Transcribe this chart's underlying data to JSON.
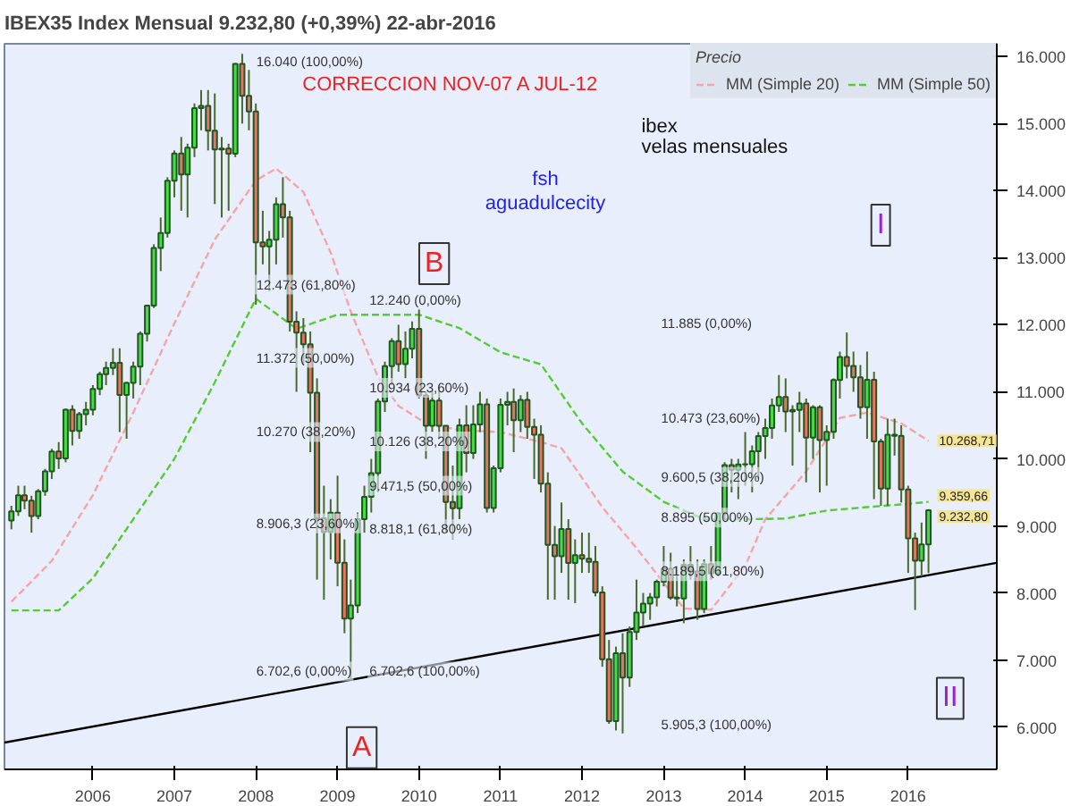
{
  "chart_data": {
    "type": "candlestick",
    "title": "IBEX35 Index   Mensual   9.232,80 (+0,39%)   22-abr-2016",
    "legend_title": "Precio",
    "legend": "top right",
    "x": [
      "2005-01",
      "2005-02",
      "2005-03",
      "2005-04",
      "2005-05",
      "2005-06",
      "2005-07",
      "2005-08",
      "2005-09",
      "2005-10",
      "2005-11",
      "2005-12",
      "2006-01",
      "2006-02",
      "2006-03",
      "2006-04",
      "2006-05",
      "2006-06",
      "2006-07",
      "2006-08",
      "2006-09",
      "2006-10",
      "2006-11",
      "2006-12",
      "2007-01",
      "2007-02",
      "2007-03",
      "2007-04",
      "2007-05",
      "2007-06",
      "2007-07",
      "2007-08",
      "2007-09",
      "2007-10",
      "2007-11",
      "2007-12",
      "2008-01",
      "2008-02",
      "2008-03",
      "2008-04",
      "2008-05",
      "2008-06",
      "2008-07",
      "2008-08",
      "2008-09",
      "2008-10",
      "2008-11",
      "2008-12",
      "2009-01",
      "2009-02",
      "2009-03",
      "2009-04",
      "2009-05",
      "2009-06",
      "2009-07",
      "2009-08",
      "2009-09",
      "2009-10",
      "2009-11",
      "2009-12",
      "2010-01",
      "2010-02",
      "2010-03",
      "2010-04",
      "2010-05",
      "2010-06",
      "2010-07",
      "2010-08",
      "2010-09",
      "2010-10",
      "2010-11",
      "2010-12",
      "2011-01",
      "2011-02",
      "2011-03",
      "2011-04",
      "2011-05",
      "2011-06",
      "2011-07",
      "2011-08",
      "2011-09",
      "2011-10",
      "2011-11",
      "2011-12",
      "2012-01",
      "2012-02",
      "2012-03",
      "2012-04",
      "2012-05",
      "2012-06",
      "2012-07",
      "2012-08",
      "2012-09",
      "2012-10",
      "2012-11",
      "2012-12",
      "2013-01",
      "2013-02",
      "2013-03",
      "2013-04",
      "2013-05",
      "2013-06",
      "2013-07",
      "2013-08",
      "2013-09",
      "2013-10",
      "2013-11",
      "2013-12",
      "2014-01",
      "2014-02",
      "2014-03",
      "2014-04",
      "2014-05",
      "2014-06",
      "2014-07",
      "2014-08",
      "2014-09",
      "2014-10",
      "2014-11",
      "2014-12",
      "2015-01",
      "2015-02",
      "2015-03",
      "2015-04",
      "2015-05",
      "2015-06",
      "2015-07",
      "2015-08",
      "2015-09",
      "2015-10",
      "2015-11",
      "2015-12",
      "2016-01",
      "2016-02",
      "2016-03",
      "2016-04"
    ],
    "ohlc": [
      [
        9080,
        9300,
        8950,
        9217
      ],
      [
        9217,
        9600,
        9150,
        9457
      ],
      [
        9457,
        9600,
        9250,
        9376
      ],
      [
        9376,
        9450,
        8900,
        9147
      ],
      [
        9147,
        9550,
        9100,
        9517
      ],
      [
        9517,
        9850,
        9450,
        9815
      ],
      [
        9815,
        10150,
        9700,
        10111
      ],
      [
        10111,
        10250,
        9850,
        10008
      ],
      [
        10008,
        10750,
        9950,
        10735
      ],
      [
        10735,
        10800,
        10200,
        10418
      ],
      [
        10418,
        10700,
        10300,
        10668
      ],
      [
        10668,
        10850,
        10500,
        10734
      ],
      [
        10734,
        11100,
        10650,
        11042
      ],
      [
        11042,
        11300,
        10950,
        11264
      ],
      [
        11264,
        11450,
        11100,
        11355
      ],
      [
        11355,
        11650,
        11250,
        11433
      ],
      [
        11433,
        11650,
        10400,
        10954
      ],
      [
        10954,
        11150,
        10300,
        11132
      ],
      [
        11132,
        11450,
        10900,
        11375
      ],
      [
        11375,
        11900,
        11100,
        11867
      ],
      [
        11867,
        12300,
        11750,
        12287
      ],
      [
        12287,
        13200,
        12250,
        13146
      ],
      [
        13146,
        13600,
        12800,
        13370
      ],
      [
        13370,
        14200,
        13300,
        14147
      ],
      [
        14147,
        14600,
        13900,
        14554
      ],
      [
        14554,
        14800,
        13700,
        14240
      ],
      [
        14240,
        14700,
        13600,
        14641
      ],
      [
        14641,
        15300,
        14500,
        15230
      ],
      [
        15230,
        15500,
        14900,
        15264
      ],
      [
        15264,
        15500,
        14600,
        14893
      ],
      [
        14893,
        15450,
        13800,
        14613
      ],
      [
        14613,
        14800,
        13600,
        14627
      ],
      [
        14627,
        14700,
        13700,
        14551
      ],
      [
        14551,
        15900,
        14500,
        15890
      ],
      [
        15890,
        16040,
        15000,
        15413
      ],
      [
        15413,
        15800,
        14900,
        15182
      ],
      [
        15182,
        15300,
        12300,
        13229
      ],
      [
        13229,
        13700,
        12900,
        13170
      ],
      [
        13170,
        13400,
        12500,
        13269
      ],
      [
        13269,
        13900,
        12900,
        13798
      ],
      [
        13798,
        14200,
        13300,
        13600
      ],
      [
        13600,
        13700,
        11900,
        12046
      ],
      [
        12046,
        12200,
        11000,
        11882
      ],
      [
        11882,
        12100,
        11400,
        11708
      ],
      [
        11708,
        11900,
        10100,
        10987
      ],
      [
        10987,
        11200,
        8200,
        9116
      ],
      [
        9116,
        9600,
        7900,
        8910
      ],
      [
        8910,
        9400,
        8500,
        9196
      ],
      [
        9196,
        9750,
        8100,
        8450
      ],
      [
        8450,
        8800,
        7400,
        7620
      ],
      [
        7620,
        8200,
        6702.6,
        7815
      ],
      [
        7815,
        9200,
        7700,
        9100
      ],
      [
        9100,
        9600,
        8900,
        9435
      ],
      [
        9435,
        10000,
        9200,
        9787
      ],
      [
        9787,
        10900,
        9500,
        10855
      ],
      [
        10855,
        11450,
        10700,
        11382
      ],
      [
        11382,
        11800,
        11100,
        11756
      ],
      [
        11756,
        12000,
        11300,
        11414
      ],
      [
        11414,
        11900,
        11200,
        11644
      ],
      [
        11644,
        12050,
        11500,
        11940
      ],
      [
        11940,
        12240,
        10900,
        10947
      ],
      [
        10947,
        11000,
        10000,
        10493
      ],
      [
        10493,
        11000,
        10400,
        10871
      ],
      [
        10871,
        11100,
        10300,
        10493
      ],
      [
        10493,
        10500,
        8900,
        9359
      ],
      [
        9359,
        9900,
        8800,
        9263
      ],
      [
        9263,
        10600,
        9100,
        10499
      ],
      [
        10499,
        10800,
        9800,
        10087
      ],
      [
        10087,
        10800,
        10000,
        10514
      ],
      [
        10514,
        11000,
        10400,
        10812
      ],
      [
        10812,
        10900,
        9200,
        9267
      ],
      [
        9267,
        9900,
        9200,
        9859
      ],
      [
        9859,
        10900,
        9800,
        10806
      ],
      [
        10806,
        11000,
        10500,
        10850
      ],
      [
        10850,
        11050,
        10100,
        10576
      ],
      [
        10576,
        10950,
        10400,
        10879
      ],
      [
        10879,
        11000,
        10300,
        10476
      ],
      [
        10476,
        10600,
        9700,
        10359
      ],
      [
        10359,
        10500,
        9500,
        9630
      ],
      [
        9630,
        9800,
        7900,
        8718
      ],
      [
        8718,
        9000,
        7900,
        8547
      ],
      [
        8547,
        9350,
        8300,
        8955
      ],
      [
        8955,
        9100,
        7900,
        8449
      ],
      [
        8449,
        8800,
        7850,
        8566
      ],
      [
        8566,
        8900,
        8300,
        8510
      ],
      [
        8510,
        8900,
        8300,
        8465
      ],
      [
        8465,
        8700,
        7950,
        8008
      ],
      [
        8008,
        8100,
        6900,
        7011
      ],
      [
        7011,
        7300,
        6050,
        6089
      ],
      [
        6089,
        7200,
        5950,
        7102
      ],
      [
        7102,
        7400,
        5905.3,
        6738
      ],
      [
        6738,
        7500,
        6600,
        7420
      ],
      [
        7420,
        8200,
        7300,
        7708
      ],
      [
        7708,
        8000,
        7500,
        7842
      ],
      [
        7842,
        8000,
        7600,
        7934
      ],
      [
        7934,
        8200,
        7800,
        8168
      ],
      [
        8168,
        8700,
        8100,
        8362
      ],
      [
        8362,
        8600,
        7900,
        7933
      ],
      [
        7933,
        8400,
        7800,
        7920
      ],
      [
        7920,
        8500,
        7550,
        8420
      ],
      [
        8420,
        8700,
        8200,
        8320
      ],
      [
        8320,
        8500,
        7600,
        7762
      ],
      [
        7762,
        8500,
        7700,
        8433
      ],
      [
        8433,
        8700,
        8200,
        8290
      ],
      [
        8290,
        9200,
        8250,
        9186
      ],
      [
        9186,
        9950,
        9100,
        9907
      ],
      [
        9907,
        10000,
        9500,
        9837
      ],
      [
        9837,
        10000,
        9400,
        9917
      ],
      [
        9917,
        10400,
        9600,
        9920
      ],
      [
        9920,
        10200,
        9500,
        10114
      ],
      [
        10114,
        10400,
        9700,
        10340
      ],
      [
        10340,
        10600,
        10000,
        10459
      ],
      [
        10459,
        10900,
        10300,
        10798
      ],
      [
        10798,
        11250,
        10700,
        10923
      ],
      [
        10923,
        11200,
        10400,
        10708
      ],
      [
        10708,
        10800,
        9900,
        10729
      ],
      [
        10729,
        11000,
        10400,
        10826
      ],
      [
        10826,
        10900,
        9650,
        10318
      ],
      [
        10318,
        10800,
        10000,
        10771
      ],
      [
        10771,
        10800,
        9500,
        10280
      ],
      [
        10280,
        10500,
        9600,
        10403
      ],
      [
        10403,
        11200,
        10300,
        11178
      ],
      [
        11178,
        11600,
        10900,
        11521
      ],
      [
        11521,
        11885,
        11200,
        11385
      ],
      [
        11385,
        11600,
        11000,
        11218
      ],
      [
        11218,
        11400,
        10600,
        10770
      ],
      [
        10770,
        11600,
        10300,
        11180
      ],
      [
        11180,
        11300,
        9400,
        10259
      ],
      [
        10259,
        10300,
        9300,
        9559
      ],
      [
        9559,
        10600,
        9300,
        10360
      ],
      [
        10360,
        10600,
        10050,
        10344
      ],
      [
        10344,
        10500,
        9350,
        9544
      ],
      [
        9544,
        9600,
        8300,
        8815
      ],
      [
        8815,
        8900,
        7746,
        8481
      ],
      [
        8481,
        9050,
        8250,
        8723
      ],
      [
        8723,
        9250,
        8300,
        9232.8
      ]
    ],
    "series": [
      {
        "name": "MM (Simple 20)",
        "type": "line",
        "line_style": "dashed",
        "color": "#f4a6a6",
        "x": [
          "2005-01",
          "2005-07",
          "2006-01",
          "2006-07",
          "2007-01",
          "2007-07",
          "2008-01",
          "2008-04",
          "2008-08",
          "2008-12",
          "2009-03",
          "2009-07",
          "2009-10",
          "2010-02",
          "2010-07",
          "2011-01",
          "2011-07",
          "2011-10",
          "2012-04",
          "2012-09",
          "2013-04",
          "2013-08",
          "2014-01",
          "2014-04",
          "2014-10",
          "2015-03",
          "2015-07",
          "2015-12",
          "2016-04"
        ],
        "values": [
          7870,
          8480,
          9460,
          10690,
          12020,
          13270,
          14150,
          14330,
          13980,
          13080,
          12200,
          11220,
          10790,
          10530,
          10430,
          10400,
          10250,
          10160,
          9280,
          8670,
          7770,
          7750,
          8400,
          9100,
          9810,
          10610,
          10690,
          10530,
          10268.71
        ]
      },
      {
        "name": "MM (Simple 50)",
        "type": "line",
        "line_style": "dashed",
        "color": "#55cc33",
        "x": [
          "2005-01",
          "2005-08",
          "2006-01",
          "2006-07",
          "2007-01",
          "2007-07",
          "2008-01",
          "2008-07",
          "2009-01",
          "2009-07",
          "2010-01",
          "2010-07",
          "2011-01",
          "2011-07",
          "2012-01",
          "2012-07",
          "2013-01",
          "2013-07",
          "2014-01",
          "2014-07",
          "2015-01",
          "2015-07",
          "2016-01",
          "2016-04"
        ],
        "values": [
          7740,
          7740,
          8220,
          9100,
          10000,
          11140,
          12390,
          11940,
          12150,
          12150,
          12150,
          11950,
          11590,
          11410,
          10530,
          9810,
          9360,
          9100,
          9100,
          9110,
          9230,
          9280,
          9330,
          9359.66
        ]
      },
      {
        "type": "line",
        "line_style": "solid",
        "color": "#000000",
        "x": [
          "2004-12",
          "2017-02"
        ],
        "values": [
          5770,
          8450
        ]
      }
    ],
    "xlim": [
      "2004-12",
      "2017-02"
    ],
    "xticks": [
      {
        "value": "2006-01",
        "label": "2006"
      },
      {
        "value": "2007-01",
        "label": "2007"
      },
      {
        "value": "2008-01",
        "label": "2008"
      },
      {
        "value": "2009-01",
        "label": "2009"
      },
      {
        "value": "2010-01",
        "label": "2010"
      },
      {
        "value": "2011-01",
        "label": "2011"
      },
      {
        "value": "2012-01",
        "label": "2012"
      },
      {
        "value": "2013-01",
        "label": "2013"
      },
      {
        "value": "2014-01",
        "label": "2014"
      },
      {
        "value": "2015-01",
        "label": "2015"
      },
      {
        "value": "2016-01",
        "label": "2016"
      }
    ],
    "ylim": [
      5370,
      16190
    ],
    "yticks": [
      {
        "value": 6000,
        "label": "6.000"
      },
      {
        "value": 7000,
        "label": "7.000"
      },
      {
        "value": 8000,
        "label": "8.000"
      },
      {
        "value": 9000,
        "label": "9.000"
      },
      {
        "value": 10000,
        "label": "10.000"
      },
      {
        "value": 11000,
        "label": "11.000"
      },
      {
        "value": 12000,
        "label": "12.000"
      },
      {
        "value": 13000,
        "label": "13.000"
      },
      {
        "value": 14000,
        "label": "14.000"
      },
      {
        "value": 15000,
        "label": "15.000"
      },
      {
        "value": 16000,
        "label": "16.000"
      }
    ],
    "grid": false,
    "annotations": [
      "CORRECCION NOV-07 A JUL-12",
      "fsh",
      "aguadulcecity",
      "ibex",
      "velas mensuales",
      "A",
      "B",
      "I",
      "II",
      "16.040 (100,00%)",
      "12.473 (61,80%)",
      "11.372 (50,00%)",
      "10.270 (38,20%)",
      "8.906,3 (23,60%)",
      "6.702,6 (0,00%)",
      "12.240 (0,00%)",
      "10.934 (23,60%)",
      "10.126 (38,20%)",
      "9.471,5 (50,00%)",
      "8.818,1 (61,80%)",
      "6.702,6 (100,00%)",
      "11.885 (0,00%)",
      "10.473 (23,60%)",
      "9.600,5 (38,20%)",
      "8.895 (50,00%)",
      "8.189,5 (61,80%)",
      "5.905,3 (100,00%)",
      {
        "text": "10.268,71",
        "x": "2016-04",
        "y": 10268.71
      },
      {
        "text": "9.359,66",
        "x": "2016-04",
        "y": 9359.66
      },
      {
        "text": "9.232,80",
        "x": "2016-04",
        "y": 9232.8
      }
    ]
  }
}
